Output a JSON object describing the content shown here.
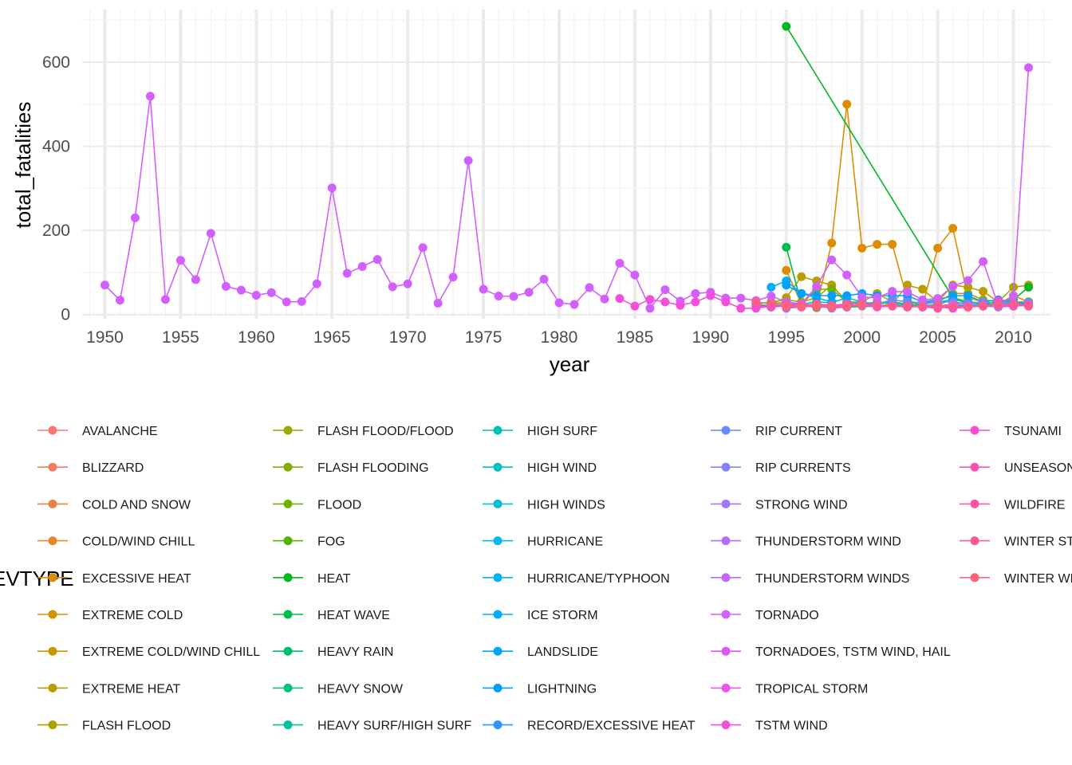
{
  "chart_data": {
    "type": "line",
    "xlabel": "year",
    "ylabel": "total_fatalities",
    "legend_title": "EVTYPE",
    "legend_position": "bottom",
    "grid": true,
    "xlim": [
      1948.5,
      2012.5
    ],
    "ylim": [
      -10,
      725
    ],
    "x_ticks": [
      1950,
      1955,
      1960,
      1965,
      1970,
      1975,
      1980,
      1985,
      1990,
      1995,
      2000,
      2005,
      2010
    ],
    "y_ticks": [
      0,
      200,
      400,
      600
    ],
    "series": [
      {
        "name": "AVALANCHE",
        "color": "#F8766D",
        "x": [
          1997,
          1998,
          1999,
          2000,
          2001,
          2002,
          2003,
          2004,
          2005,
          2006,
          2007,
          2008,
          2009,
          2010,
          2011
        ],
        "y": [
          16,
          20,
          22,
          25,
          30,
          25,
          22,
          23,
          20,
          18,
          20,
          20,
          22,
          25,
          30
        ]
      },
      {
        "name": "BLIZZARD",
        "color": "#F47B5B",
        "x": [
          1993,
          1994,
          1995,
          1996
        ],
        "y": [
          25,
          20,
          22,
          22
        ]
      },
      {
        "name": "COLD AND SNOW",
        "color": "#EE8044",
        "x": [
          1995
        ],
        "y": [
          18
        ]
      },
      {
        "name": "COLD/WIND CHILL",
        "color": "#E6862A",
        "x": [
          2006,
          2007,
          2008,
          2009,
          2010,
          2011
        ],
        "y": [
          25,
          22,
          20,
          24,
          28,
          22
        ]
      },
      {
        "name": "EXCESSIVE HEAT",
        "color": "#DD8D00",
        "x": [
          1995,
          1996,
          1997,
          1998,
          1999,
          2000,
          2001,
          2002,
          2003,
          2004,
          2005,
          2006,
          2007,
          2008,
          2009,
          2010,
          2011
        ],
        "y": [
          105,
          25,
          20,
          170,
          500,
          158,
          167,
          167,
          35,
          20,
          158,
          205,
          40,
          30,
          25,
          45,
          30
        ]
      },
      {
        "name": "EXTREME COLD",
        "color": "#D39200",
        "x": [
          1995,
          1996,
          1997,
          1998,
          1999,
          2000,
          2001,
          2002,
          2003,
          2004,
          2005
        ],
        "y": [
          20,
          25,
          18,
          20,
          25,
          22,
          20,
          25,
          22,
          20,
          22
        ]
      },
      {
        "name": "EXTREME COLD/WIND CHILL",
        "color": "#C99800",
        "x": [
          2006,
          2007,
          2008,
          2009,
          2010,
          2011
        ],
        "y": [
          25,
          30,
          28,
          22,
          30,
          20
        ]
      },
      {
        "name": "EXTREME HEAT",
        "color": "#BB9D00",
        "x": [
          1994,
          1995,
          1996,
          1997,
          1998,
          1999,
          2000,
          2001,
          2002,
          2003,
          2004,
          2005,
          2006,
          2007,
          2008,
          2009,
          2010,
          2011
        ],
        "y": [
          25,
          40,
          90,
          80,
          70,
          30,
          25,
          30,
          25,
          70,
          60,
          30,
          70,
          65,
          55,
          30,
          30,
          30
        ]
      },
      {
        "name": "FLASH FLOOD",
        "color": "#ADA200",
        "x": [
          1993,
          1994,
          1995,
          1996,
          1997,
          1998,
          1999,
          2000,
          2001,
          2002,
          2003,
          2004,
          2005,
          2006,
          2007,
          2008,
          2009,
          2010,
          2011
        ],
        "y": [
          25,
          30,
          35,
          30,
          40,
          70,
          30,
          30,
          50,
          30,
          25,
          30,
          30,
          50,
          50,
          35,
          30,
          65,
          70
        ]
      },
      {
        "name": "FLASH FLOOD/FLOOD",
        "color": "#9CA700",
        "x": [
          1994,
          1995
        ],
        "y": [
          20,
          25
        ]
      },
      {
        "name": "FLASH FLOODING",
        "color": "#88AB00",
        "x": [
          1994,
          1995
        ],
        "y": [
          18,
          22
        ]
      },
      {
        "name": "FLOOD",
        "color": "#71B000",
        "x": [
          1994,
          1995,
          1996,
          1997,
          1998,
          1999,
          2000,
          2001,
          2002,
          2003,
          2004,
          2005,
          2006,
          2007,
          2008,
          2009,
          2010,
          2011
        ],
        "y": [
          25,
          30,
          25,
          60,
          60,
          30,
          25,
          25,
          30,
          25,
          20,
          20,
          40,
          25,
          30,
          25,
          20,
          30
        ]
      },
      {
        "name": "FOG",
        "color": "#53B400",
        "x": [
          1994,
          1995,
          1996,
          1997,
          1998
        ],
        "y": [
          18,
          22,
          20,
          18,
          20
        ]
      },
      {
        "name": "HEAT",
        "color": "#00B81F",
        "x": [
          1995,
          2006,
          2007,
          2008,
          2009,
          2010,
          2011
        ],
        "y": [
          685,
          40,
          30,
          25,
          30,
          35,
          65
        ]
      },
      {
        "name": "HEAT WAVE",
        "color": "#00BB4E",
        "x": [
          1995,
          1996,
          1997,
          1998,
          1999
        ],
        "y": [
          160,
          25,
          20,
          22,
          20
        ]
      },
      {
        "name": "HEAVY RAIN",
        "color": "#00BE6C",
        "x": [
          1995,
          1997,
          1999,
          2001
        ],
        "y": [
          20,
          22,
          18,
          20
        ]
      },
      {
        "name": "HEAVY SNOW",
        "color": "#00C085",
        "x": [
          1993,
          1995,
          1997,
          1999,
          2001,
          2003
        ],
        "y": [
          20,
          25,
          22,
          18,
          20,
          22
        ]
      },
      {
        "name": "HEAVY SURF/HIGH SURF",
        "color": "#00C19C",
        "x": [
          2003,
          2004,
          2005
        ],
        "y": [
          18,
          20,
          22
        ]
      },
      {
        "name": "HIGH SURF",
        "color": "#00C1B2",
        "x": [
          2006,
          2007,
          2008,
          2009,
          2010,
          2011
        ],
        "y": [
          20,
          22,
          25,
          18,
          20,
          22
        ]
      },
      {
        "name": "HIGH WIND",
        "color": "#00C0C6",
        "x": [
          1995,
          1996,
          1997,
          1998,
          1999,
          2000,
          2001,
          2002,
          2003,
          2004,
          2005,
          2006,
          2007,
          2008,
          2009,
          2010,
          2011
        ],
        "y": [
          30,
          25,
          30,
          28,
          40,
          30,
          25,
          30,
          22,
          25,
          30,
          35,
          30,
          25,
          20,
          30,
          28
        ]
      },
      {
        "name": "HIGH WINDS",
        "color": "#00BDD8",
        "x": [
          1995,
          1996,
          1997
        ],
        "y": [
          25,
          20,
          22
        ]
      },
      {
        "name": "HURRICANE",
        "color": "#00BAE8",
        "x": [
          2004,
          2005
        ],
        "y": [
          20,
          25
        ]
      },
      {
        "name": "HURRICANE/TYPHOON",
        "color": "#00B4F5",
        "x": [
          2004,
          2005
        ],
        "y": [
          18,
          22
        ]
      },
      {
        "name": "ICE STORM",
        "color": "#00AEFB",
        "x": [
          1994,
          1995,
          1996,
          1997,
          1998
        ],
        "y": [
          65,
          80,
          50,
          40,
          30
        ]
      },
      {
        "name": "LANDSLIDE",
        "color": "#00A7FF",
        "x": [
          1996,
          1997,
          1998,
          1999
        ],
        "y": [
          20,
          25,
          22,
          20
        ]
      },
      {
        "name": "LIGHTNING",
        "color": "#00A0FF",
        "x": [
          1995,
          1996,
          1997,
          1998,
          1999,
          2000,
          2001,
          2002,
          2003,
          2004,
          2005,
          2006,
          2007,
          2008,
          2009,
          2010,
          2011
        ],
        "y": [
          70,
          50,
          45,
          45,
          45,
          50,
          45,
          45,
          45,
          30,
          35,
          45,
          45,
          30,
          35,
          30,
          25
        ]
      },
      {
        "name": "RECORD/EXCESSIVE HEAT",
        "color": "#2D96FF",
        "x": [
          1995
        ],
        "y": [
          25
        ]
      },
      {
        "name": "RIP CURRENT",
        "color": "#618CFF",
        "x": [
          1999,
          2000,
          2001,
          2002,
          2003,
          2004,
          2005,
          2006,
          2007,
          2008,
          2009,
          2010,
          2011
        ],
        "y": [
          25,
          30,
          25,
          35,
          30,
          28,
          30,
          30,
          25,
          30,
          25,
          30,
          28
        ]
      },
      {
        "name": "RIP CURRENTS",
        "color": "#8182FF",
        "x": [
          1995,
          1996,
          1997,
          1998,
          1999,
          2000
        ],
        "y": [
          20,
          22,
          25,
          20,
          22,
          20
        ]
      },
      {
        "name": "STRONG WIND",
        "color": "#9D78FF",
        "x": [
          1995,
          1996,
          1997,
          1998,
          1999
        ],
        "y": [
          15,
          18,
          20,
          15,
          18
        ]
      },
      {
        "name": "THUNDERSTORM WIND",
        "color": "#B26FFF",
        "x": [
          1999,
          2000,
          2001,
          2002,
          2003,
          2004,
          2005,
          2006,
          2007,
          2008,
          2009,
          2010,
          2011
        ],
        "y": [
          20,
          25,
          20,
          22,
          20,
          18,
          20,
          25,
          22,
          20,
          18,
          20,
          25
        ]
      },
      {
        "name": "THUNDERSTORM WINDS",
        "color": "#C366FF",
        "x": [
          1993,
          1994,
          1995,
          1996,
          1997,
          1998
        ],
        "y": [
          20,
          18,
          22,
          20,
          25,
          20
        ]
      },
      {
        "name": "TORNADO",
        "color": "#D25FFF",
        "x": [
          1950,
          1951,
          1952,
          1953,
          1954,
          1955,
          1956,
          1957,
          1958,
          1959,
          1960,
          1961,
          1962,
          1963,
          1964,
          1965,
          1966,
          1967,
          1968,
          1969,
          1970,
          1971,
          1972,
          1973,
          1974,
          1975,
          1976,
          1977,
          1978,
          1979,
          1980,
          1981,
          1982,
          1983,
          1984,
          1985,
          1986,
          1987,
          1988,
          1989,
          1990,
          1991,
          1992,
          1993,
          1994,
          1995,
          1996,
          1997,
          1998,
          1999,
          2000,
          2001,
          2002,
          2003,
          2004,
          2005,
          2006,
          2007,
          2008,
          2009,
          2010,
          2011
        ],
        "y": [
          70,
          34,
          230,
          519,
          36,
          129,
          83,
          193,
          67,
          58,
          46,
          52,
          30,
          31,
          73,
          301,
          98,
          114,
          131,
          66,
          73,
          159,
          27,
          89,
          366,
          60,
          44,
          43,
          53,
          84,
          28,
          24,
          64,
          37,
          122,
          94,
          15,
          59,
          32,
          50,
          53,
          39,
          39,
          33,
          44,
          30,
          25,
          67,
          130,
          94,
          41,
          40,
          55,
          54,
          35,
          38,
          67,
          81,
          126,
          21,
          45,
          587
        ]
      },
      {
        "name": "TORNADOES, TSTM WIND, HAIL",
        "color": "#DF58F6",
        "x": [
          1993,
          1994,
          1995
        ],
        "y": [
          18,
          20,
          22
        ]
      },
      {
        "name": "TROPICAL STORM",
        "color": "#EA53E9",
        "x": [
          1994,
          1995,
          1996,
          1997,
          1998,
          1999
        ],
        "y": [
          18,
          20,
          25,
          22,
          20,
          18
        ]
      },
      {
        "name": "TSTM WIND",
        "color": "#F34FDA",
        "x": [
          1984,
          1985,
          1986,
          1987,
          1988,
          1989,
          1990,
          1991,
          1992,
          1993,
          1994,
          1995,
          1996,
          1997,
          1998,
          1999,
          2000,
          2001,
          2002,
          2003,
          2004,
          2005,
          2006,
          2007,
          2008,
          2009,
          2010,
          2011
        ],
        "y": [
          38,
          20,
          36,
          30,
          22,
          30,
          45,
          30,
          15,
          15,
          20,
          25,
          22,
          20,
          22,
          25,
          22,
          18,
          20,
          18,
          20,
          18,
          15,
          18,
          20,
          22,
          20,
          22
        ]
      },
      {
        "name": "TSUNAMI",
        "color": "#FA4DC9",
        "x": [
          2009
        ],
        "y": [
          32
        ]
      },
      {
        "name": "UNSEASONABLY WARM",
        "color": "#FE4FB6",
        "x": [
          1995,
          1996,
          1997
        ],
        "y": [
          20,
          18,
          22
        ]
      },
      {
        "name": "WILDFIRE",
        "color": "#FF54A2",
        "x": [
          2003,
          2004,
          2005,
          2006,
          2007,
          2008
        ],
        "y": [
          20,
          18,
          15,
          20,
          18,
          22
        ]
      },
      {
        "name": "WINTER STORM",
        "color": "#FF5A8D",
        "x": [
          1993,
          1994,
          1995,
          1996,
          1997,
          1998,
          1999,
          2000,
          2001,
          2002,
          2003,
          2004,
          2005,
          2006,
          2007,
          2008,
          2009,
          2010,
          2011
        ],
        "y": [
          30,
          25,
          22,
          20,
          25,
          22,
          20,
          25,
          22,
          20,
          18,
          20,
          22,
          20,
          18,
          20,
          22,
          25,
          20
        ]
      },
      {
        "name": "WINTER WEATHER",
        "color": "#FF6379",
        "x": [
          1995,
          1996,
          1997,
          1998,
          1999,
          2000
        ],
        "y": [
          18,
          20,
          22,
          18,
          20,
          22
        ]
      }
    ]
  },
  "legend_columns": [
    [
      "AVALANCHE",
      "BLIZZARD",
      "COLD AND SNOW",
      "COLD/WIND CHILL",
      "EXCESSIVE HEAT",
      "EXTREME COLD",
      "EXTREME COLD/WIND CHILL",
      "EXTREME HEAT",
      "FLASH FLOOD"
    ],
    [
      "FLASH FLOOD/FLOOD",
      "FLASH FLOODING",
      "FLOOD",
      "FOG",
      "HEAT",
      "HEAT WAVE",
      "HEAVY RAIN",
      "HEAVY SNOW",
      "HEAVY SURF/HIGH SURF"
    ],
    [
      "HIGH SURF",
      "HIGH WIND",
      "HIGH WINDS",
      "HURRICANE",
      "HURRICANE/TYPHOON",
      "ICE STORM",
      "LANDSLIDE",
      "LIGHTNING",
      "RECORD/EXCESSIVE HEAT"
    ],
    [
      "RIP CURRENT",
      "RIP CURRENTS",
      "STRONG WIND",
      "THUNDERSTORM WIND",
      "THUNDERSTORM WINDS",
      "TORNADO",
      "TORNADOES, TSTM WIND, HAIL",
      "TROPICAL STORM",
      "TSTM WIND"
    ],
    [
      "TSUNAMI",
      "UNSEASONABLY WARM",
      "WILDFIRE",
      "WINTER STORM",
      "WINTER WEATHER"
    ]
  ]
}
